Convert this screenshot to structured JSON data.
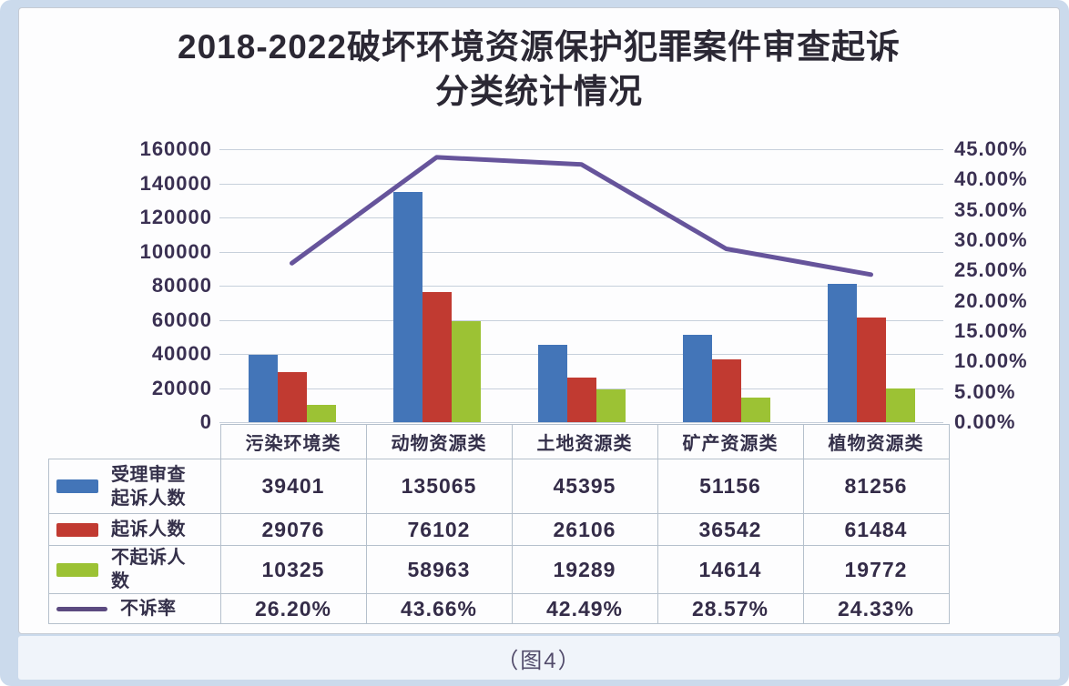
{
  "page": {
    "caption": "（图4）"
  },
  "chart_data": {
    "type": "bar",
    "overlay": "line",
    "title": "2018-2022破坏环境资源保护犯罪案件审查起诉分类统计情况",
    "title_lines": [
      "2018-2022破坏环境资源保护犯罪案件审查起诉",
      "分类统计情况"
    ],
    "categories": [
      "污染环境类",
      "动物资源类",
      "土地资源类",
      "矿产资源类",
      "植物资源类"
    ],
    "series": [
      {
        "name": "受理审查起诉人数",
        "type": "bar",
        "color": "#4375b8",
        "values": [
          39401,
          135065,
          45395,
          51156,
          81256
        ]
      },
      {
        "name": "起诉人数",
        "type": "bar",
        "color": "#c13a31",
        "values": [
          29076,
          76102,
          26106,
          36542,
          61484
        ]
      },
      {
        "name": "不起诉人数",
        "type": "bar",
        "color": "#9cc234",
        "values": [
          10325,
          58963,
          19289,
          14614,
          19772
        ]
      },
      {
        "name": "不诉率",
        "type": "line",
        "axis": "right",
        "color": "#66549b",
        "values": [
          26.2,
          43.66,
          42.49,
          28.57,
          24.33
        ],
        "labels": [
          "26.20%",
          "43.66%",
          "42.49%",
          "28.57%",
          "24.33%"
        ]
      }
    ],
    "left_axis": {
      "min": 0,
      "max": 160000,
      "step": 20000,
      "tick_labels": [
        "160000",
        "140000",
        "120000",
        "100000",
        "80000",
        "60000",
        "40000",
        "20000",
        "0"
      ]
    },
    "right_axis": {
      "min": 0,
      "max": 45,
      "step": 5,
      "tick_labels": [
        "45.00%",
        "40.00%",
        "35.00%",
        "30.00%",
        "25.00%",
        "20.00%",
        "15.00%",
        "10.00%",
        "5.00%",
        "0.00%"
      ]
    },
    "grid": true,
    "legend_position": "data-table-left",
    "accent_colors": {
      "grid": "#c7d0db",
      "table_border": "#b5c0cc",
      "axis_text": "#3a3052",
      "page_background": "#cbdaec"
    }
  }
}
